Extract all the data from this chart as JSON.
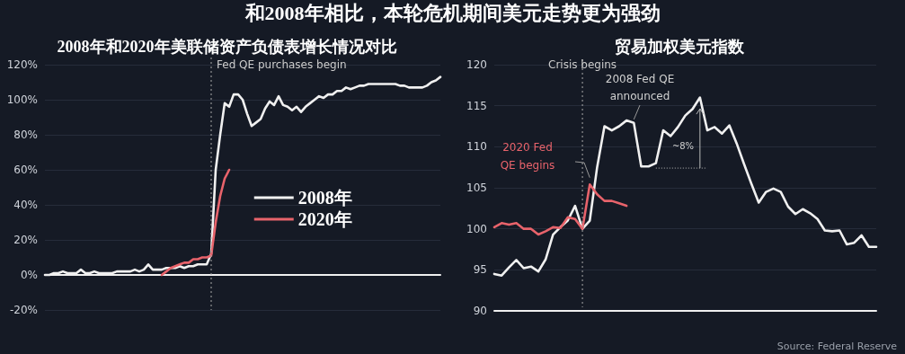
{
  "chart_data": [
    {
      "type": "line",
      "title": "和2008年相比，本轮危机期间美元走势更为强劲",
      "subtitle": "2008年和2020年美联储资产负债表增长情况对比",
      "categories": [
        null,
        null,
        null,
        null,
        null,
        null,
        null,
        null,
        null,
        null,
        null,
        null,
        null,
        null,
        null,
        null,
        null,
        null,
        null,
        null,
        null,
        null,
        null,
        null,
        null,
        null,
        null,
        null,
        null,
        null,
        null,
        null,
        null,
        null,
        null,
        null,
        null,
        null,
        null,
        null,
        null,
        null,
        null,
        null,
        null,
        null,
        null,
        null,
        null,
        null,
        null,
        null,
        null,
        null,
        null,
        null,
        null,
        null,
        null,
        null,
        null,
        null,
        null,
        null,
        null,
        null,
        null,
        null,
        null,
        null,
        null,
        null,
        null,
        null,
        null,
        null,
        null,
        null,
        null,
        null,
        null,
        null,
        null,
        null,
        null,
        null,
        null,
        null,
        null
      ],
      "series": [
        {
          "name": "2008年",
          "color": "#f0f0f0",
          "values": [
            0,
            0,
            1,
            1,
            2,
            1,
            1,
            1,
            3,
            1,
            1,
            2,
            1,
            1,
            1,
            1,
            2,
            2,
            2,
            2,
            3,
            2,
            3,
            6,
            3,
            3,
            3,
            4,
            4,
            4,
            5,
            4,
            5,
            5,
            6,
            6,
            6,
            12,
            60,
            80,
            98,
            96,
            103,
            103,
            100,
            92,
            85,
            87,
            89,
            95,
            99,
            97,
            102,
            97,
            96,
            94,
            96,
            93,
            96,
            98,
            100,
            102,
            101,
            103,
            103,
            105,
            105,
            107,
            106,
            107,
            108,
            108,
            109,
            109,
            109,
            109,
            109,
            109,
            109,
            108,
            108,
            107,
            107,
            107,
            107,
            108,
            110,
            111,
            113
          ]
        },
        {
          "name": "2020年",
          "color": "#e8636b",
          "values": [
            null,
            null,
            null,
            null,
            null,
            null,
            null,
            null,
            null,
            null,
            null,
            null,
            null,
            null,
            null,
            null,
            null,
            null,
            null,
            null,
            null,
            null,
            null,
            null,
            null,
            null,
            0,
            2,
            4,
            5,
            6,
            7,
            7,
            9,
            9,
            10,
            10,
            11,
            30,
            45,
            55,
            60,
            null,
            null,
            null,
            null,
            null,
            null,
            null,
            null,
            null,
            null,
            null,
            null,
            null,
            null,
            null,
            null,
            null,
            null,
            null,
            null,
            null,
            null,
            null,
            null,
            null,
            null,
            null,
            null,
            null,
            null,
            null,
            null,
            null,
            null,
            null,
            null,
            null,
            null,
            null,
            null,
            null,
            null,
            null,
            null,
            null,
            null,
            null
          ]
        }
      ],
      "ylim": [
        -20,
        120
      ],
      "yticks": [
        {
          "value": -20,
          "label": "-20%"
        },
        {
          "value": 0,
          "label": "0%"
        },
        {
          "value": 20,
          "label": "20%"
        },
        {
          "value": 40,
          "label": "40%"
        },
        {
          "value": 60,
          "label": "60%"
        },
        {
          "value": 80,
          "label": "80%"
        },
        {
          "value": 100,
          "label": "100%"
        },
        {
          "value": 120,
          "label": "120%"
        }
      ],
      "annotations": [
        "Fed QE purchases begin"
      ],
      "grid": "y",
      "legend": "center",
      "tick_labels": "y",
      "line_style": "solid"
    },
    {
      "type": "line",
      "title": "贸易加权美元指数",
      "categories": [
        null,
        null,
        null,
        null,
        null,
        null,
        null,
        null,
        null,
        null,
        null,
        null,
        null,
        null,
        null,
        null,
        null,
        null,
        null,
        null,
        null,
        null,
        null,
        null,
        null,
        null,
        null,
        null,
        null,
        null,
        null,
        null,
        null,
        null,
        null,
        null,
        null,
        null,
        null,
        null,
        null,
        null,
        null,
        null,
        null,
        null,
        null,
        null,
        null,
        null,
        null,
        null,
        null
      ],
      "series": [
        {
          "color": "#f0f0f0",
          "values": [
            94.5,
            94.3,
            95.3,
            96.2,
            95.2,
            95.4,
            94.8,
            96.3,
            99.3,
            100.2,
            101,
            102.8,
            100,
            101,
            107.5,
            112.5,
            112,
            112.5,
            113.2,
            112.9,
            107.6,
            107.6,
            108,
            112,
            111.3,
            112.4,
            113.8,
            114.6,
            116,
            112,
            112.4,
            111.6,
            112.6,
            110.4,
            107.9,
            105.5,
            103.2,
            104.5,
            104.9,
            104.5,
            102.7,
            101.8,
            102.4,
            101.9,
            101.2,
            99.8,
            99.7,
            99.8,
            98.1,
            98.3,
            99.2,
            97.8,
            97.8
          ]
        },
        {
          "color": "#e8636b",
          "values": [
            100.2,
            100.7,
            100.5,
            100.7,
            100,
            100,
            99.3,
            99.7,
            100.2,
            100.1,
            101.4,
            101.2,
            100,
            105.4,
            104.2,
            103.4,
            103.4,
            103.1,
            102.8,
            null,
            null,
            null,
            null,
            null,
            null,
            null,
            null,
            null,
            null,
            null,
            null,
            null,
            null,
            null,
            null,
            null,
            null,
            null,
            null,
            null,
            null,
            null,
            null,
            null,
            null,
            null,
            null,
            null,
            null,
            null,
            null,
            null,
            null
          ]
        }
      ],
      "ylim": [
        90,
        120
      ],
      "yticks": [
        90,
        95,
        100,
        105,
        110,
        115,
        120
      ],
      "annotations": [
        "Crisis begins",
        "2020 Fed QE begins",
        "2008 Fed QE announced",
        "~8%",
        "Source: Federal Reserve"
      ],
      "grid": "y",
      "legend": false,
      "tick_labels": "y",
      "line_style": "solid"
    }
  ]
}
